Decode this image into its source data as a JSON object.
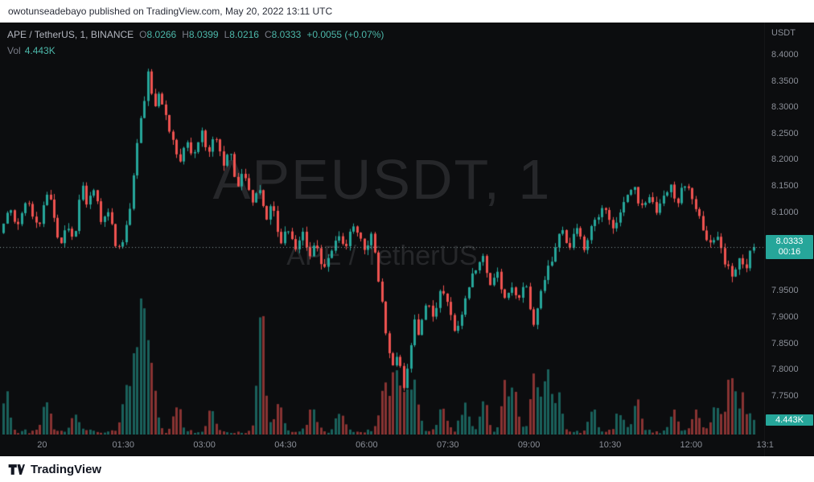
{
  "header": {
    "attribution": "owotunseadebayo published on TradingView.com, May 20, 2022 13:11 UTC"
  },
  "legend": {
    "symbol_title": "APE / TetherUS, 1, BINANCE",
    "ohlc": [
      {
        "label": "O",
        "value": "8.0266"
      },
      {
        "label": "H",
        "value": "8.0399"
      },
      {
        "label": "L",
        "value": "8.0216"
      },
      {
        "label": "C",
        "value": "8.0333"
      }
    ],
    "change": "+0.0055 (+0.07%)",
    "vol_label": "Vol",
    "vol_value": "4.443K"
  },
  "watermark": {
    "line1": "APEUSDT, 1",
    "line2": "APE / TetherUS"
  },
  "axis": {
    "unit": "USDT",
    "price_labels": [
      "8.4000",
      "8.3500",
      "8.3000",
      "8.2500",
      "8.2000",
      "8.1500",
      "8.1000",
      "7.9500",
      "7.9000",
      "7.8500",
      "7.8000",
      "7.7500"
    ],
    "time_labels": [
      {
        "label": "20",
        "t": 0
      },
      {
        "label": "01:30",
        "t": 90
      },
      {
        "label": "03:00",
        "t": 180
      },
      {
        "label": "04:30",
        "t": 270
      },
      {
        "label": "06:00",
        "t": 360
      },
      {
        "label": "07:30",
        "t": 450
      },
      {
        "label": "09:00",
        "t": 540
      },
      {
        "label": "10:30",
        "t": 630
      },
      {
        "label": "12:00",
        "t": 720
      },
      {
        "label": "13:1",
        "t": 802
      }
    ],
    "last_price_badge": {
      "price": "8.0333",
      "countdown": "00:16"
    },
    "volume_badge": "4.443K"
  },
  "footer": {
    "brand": "TradingView"
  },
  "chart_data": {
    "type": "candlestick+volume",
    "symbol": "APEUSDT",
    "pair": "APE / TetherUS",
    "interval_minutes": 1,
    "exchange": "BINANCE",
    "quote_unit": "USDT",
    "ohlc_last": {
      "open": 8.0266,
      "high": 8.0399,
      "low": 8.0216,
      "close": 8.0333
    },
    "change_abs": 0.0055,
    "change_pct": 0.07,
    "last_volume_k": 4.443,
    "session_high": 8.38,
    "session_low": 7.76,
    "time_range_minutes": [
      -45,
      792
    ],
    "candle_minutes": 4,
    "price_axis_range": [
      7.676,
      8.4613
    ],
    "y_ticks": [
      8.4,
      8.35,
      8.3,
      8.25,
      8.2,
      8.15,
      8.1,
      7.95,
      7.9,
      7.85,
      7.8,
      7.75
    ],
    "x_ticks": [
      "20",
      "01:30",
      "03:00",
      "04:30",
      "06:00",
      "07:30",
      "09:00",
      "10:30",
      "12:00",
      "13:1"
    ],
    "price_waypoints": [
      [
        -45,
        8.06
      ],
      [
        -35,
        8.115
      ],
      [
        -25,
        8.07
      ],
      [
        -15,
        8.125
      ],
      [
        -8,
        8.09
      ],
      [
        0,
        8.07
      ],
      [
        6,
        8.145
      ],
      [
        14,
        8.1
      ],
      [
        22,
        8.035
      ],
      [
        30,
        8.075
      ],
      [
        38,
        8.05
      ],
      [
        45,
        8.16
      ],
      [
        52,
        8.115
      ],
      [
        60,
        8.14
      ],
      [
        68,
        8.075
      ],
      [
        76,
        8.1
      ],
      [
        84,
        8.025
      ],
      [
        92,
        8.05
      ],
      [
        100,
        8.12
      ],
      [
        108,
        8.24
      ],
      [
        114,
        8.305
      ],
      [
        120,
        8.38
      ],
      [
        125,
        8.295
      ],
      [
        130,
        8.33
      ],
      [
        138,
        8.29
      ],
      [
        146,
        8.24
      ],
      [
        154,
        8.195
      ],
      [
        162,
        8.23
      ],
      [
        170,
        8.2
      ],
      [
        178,
        8.255
      ],
      [
        186,
        8.215
      ],
      [
        194,
        8.245
      ],
      [
        202,
        8.19
      ],
      [
        210,
        8.215
      ],
      [
        218,
        8.15
      ],
      [
        226,
        8.175
      ],
      [
        234,
        8.115
      ],
      [
        242,
        8.145
      ],
      [
        250,
        8.085
      ],
      [
        258,
        8.115
      ],
      [
        266,
        8.04
      ],
      [
        274,
        8.075
      ],
      [
        282,
        8.02
      ],
      [
        290,
        8.065
      ],
      [
        298,
        8.01
      ],
      [
        306,
        8.045
      ],
      [
        314,
        7.985
      ],
      [
        322,
        8.02
      ],
      [
        330,
        8.065
      ],
      [
        338,
        8.035
      ],
      [
        346,
        8.08
      ],
      [
        354,
        8.05
      ],
      [
        360,
        8.03
      ],
      [
        368,
        8.055
      ],
      [
        376,
        7.96
      ],
      [
        384,
        7.86
      ],
      [
        390,
        7.8
      ],
      [
        396,
        7.835
      ],
      [
        402,
        7.765
      ],
      [
        408,
        7.8
      ],
      [
        414,
        7.9
      ],
      [
        420,
        7.86
      ],
      [
        428,
        7.935
      ],
      [
        436,
        7.895
      ],
      [
        444,
        7.955
      ],
      [
        452,
        7.92
      ],
      [
        460,
        7.86
      ],
      [
        468,
        7.915
      ],
      [
        476,
        7.97
      ],
      [
        484,
        8.0
      ],
      [
        490,
        8.02
      ],
      [
        498,
        7.955
      ],
      [
        506,
        7.99
      ],
      [
        514,
        7.925
      ],
      [
        522,
        7.965
      ],
      [
        530,
        7.94
      ],
      [
        538,
        7.975
      ],
      [
        546,
        7.875
      ],
      [
        554,
        7.945
      ],
      [
        562,
        7.985
      ],
      [
        570,
        8.03
      ],
      [
        578,
        8.07
      ],
      [
        586,
        8.035
      ],
      [
        594,
        8.075
      ],
      [
        602,
        8.03
      ],
      [
        610,
        8.065
      ],
      [
        618,
        8.09
      ],
      [
        626,
        8.11
      ],
      [
        634,
        8.065
      ],
      [
        642,
        8.1
      ],
      [
        650,
        8.125
      ],
      [
        658,
        8.15
      ],
      [
        666,
        8.105
      ],
      [
        674,
        8.135
      ],
      [
        682,
        8.1
      ],
      [
        690,
        8.13
      ],
      [
        698,
        8.155
      ],
      [
        706,
        8.12
      ],
      [
        714,
        8.155
      ],
      [
        722,
        8.135
      ],
      [
        728,
        8.1
      ],
      [
        736,
        8.065
      ],
      [
        744,
        8.03
      ],
      [
        752,
        8.06
      ],
      [
        760,
        8.0
      ],
      [
        768,
        7.975
      ],
      [
        776,
        8.015
      ],
      [
        784,
        7.995
      ],
      [
        792,
        8.0333
      ]
    ],
    "volume_spikes_k": [
      [
        -40,
        10
      ],
      [
        4,
        8
      ],
      [
        36,
        5
      ],
      [
        92,
        12
      ],
      [
        104,
        22
      ],
      [
        112,
        36
      ],
      [
        122,
        16
      ],
      [
        150,
        8
      ],
      [
        188,
        7
      ],
      [
        243,
        30
      ],
      [
        262,
        9
      ],
      [
        300,
        7
      ],
      [
        330,
        6
      ],
      [
        378,
        14
      ],
      [
        390,
        18
      ],
      [
        402,
        15
      ],
      [
        414,
        12
      ],
      [
        444,
        8
      ],
      [
        468,
        9
      ],
      [
        490,
        11
      ],
      [
        514,
        13
      ],
      [
        524,
        9
      ],
      [
        546,
        17
      ],
      [
        560,
        25
      ],
      [
        572,
        10
      ],
      [
        610,
        7
      ],
      [
        640,
        6
      ],
      [
        660,
        9
      ],
      [
        700,
        7
      ],
      [
        726,
        6
      ],
      [
        748,
        8
      ],
      [
        764,
        19
      ],
      [
        776,
        9
      ],
      [
        788,
        5
      ]
    ],
    "colors": {
      "background": "#0c0d0f",
      "up": "#26a69a",
      "down": "#ef5350",
      "vol_up": "rgba(38,166,154,0.55)",
      "vol_down": "rgba(239,83,80,0.55)",
      "last_price_line": "rgba(156,178,176,0.85)",
      "badge": "#26a69a",
      "axis_text": "#8b8f98"
    }
  }
}
